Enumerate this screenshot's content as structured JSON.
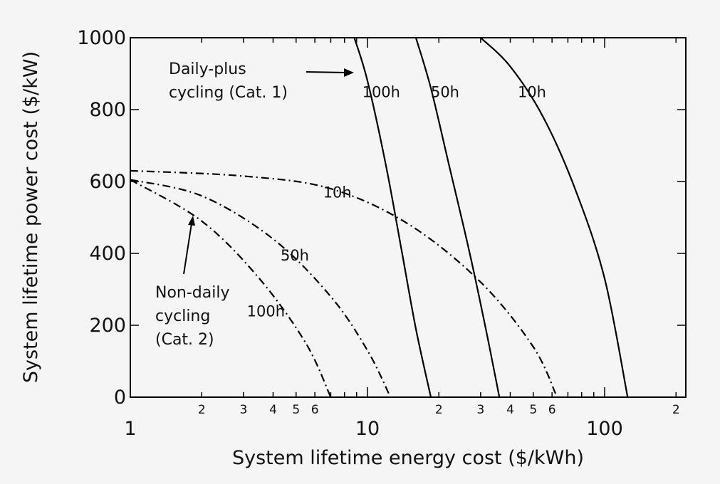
{
  "chart_data": {
    "type": "line",
    "xlabel": "System lifetime energy cost ($/kWh)",
    "ylabel": "System lifetime power cost ($/kW)",
    "xscale": "log",
    "xlim": [
      1,
      200
    ],
    "ylim": [
      0,
      1000
    ],
    "y_ticks": [
      "0",
      "200",
      "400",
      "600",
      "800",
      "1000"
    ],
    "x_major_ticks": [
      {
        "value": 1,
        "label": "1"
      },
      {
        "value": 10,
        "label": "10"
      },
      {
        "value": 100,
        "label": "100"
      }
    ],
    "x_minor_ticks": [
      {
        "value": 2,
        "label": "2"
      },
      {
        "value": 3,
        "label": "3"
      },
      {
        "value": 4,
        "label": "4"
      },
      {
        "value": 5,
        "label": "5"
      },
      {
        "value": 6,
        "label": "6"
      },
      {
        "value": 7,
        "label": ""
      },
      {
        "value": 8,
        "label": ""
      },
      {
        "value": 9,
        "label": ""
      },
      {
        "value": 20,
        "label": "2"
      },
      {
        "value": 30,
        "label": "3"
      },
      {
        "value": 40,
        "label": "4"
      },
      {
        "value": 50,
        "label": "5"
      },
      {
        "value": 60,
        "label": "6"
      },
      {
        "value": 70,
        "label": ""
      },
      {
        "value": 80,
        "label": ""
      },
      {
        "value": 90,
        "label": ""
      },
      {
        "value": 200,
        "label": "2"
      }
    ],
    "series": [
      {
        "label": "100h",
        "group": "Daily-plus cycling (Cat. 1)",
        "style": "solid",
        "x": [
          8.8,
          10,
          12,
          14,
          16,
          18.5
        ],
        "y": [
          1000,
          880,
          640,
          400,
          190,
          0
        ],
        "label_at": {
          "x": 9.5,
          "y": 835
        }
      },
      {
        "label": "50h",
        "group": "Daily-plus cycling (Cat. 1)",
        "style": "solid",
        "x": [
          16,
          18.5,
          22,
          27,
          32,
          36
        ],
        "y": [
          1000,
          860,
          650,
          400,
          170,
          0
        ],
        "label_at": {
          "x": 18.5,
          "y": 835
        }
      },
      {
        "label": "10h",
        "group": "Daily-plus cycling (Cat. 1)",
        "style": "solid",
        "x": [
          30,
          40,
          55,
          75,
          100,
          125
        ],
        "y": [
          1000,
          920,
          780,
          580,
          330,
          0
        ],
        "label_at": {
          "x": 43,
          "y": 835
        }
      },
      {
        "label": "10h",
        "group": "Non-daily cycling (Cat. 2)",
        "style": "dashdot",
        "x": [
          1,
          3,
          7,
          15,
          30,
          50,
          63
        ],
        "y": [
          630,
          615,
          580,
          480,
          320,
          140,
          0
        ],
        "label_at": {
          "x": 6.5,
          "y": 555
        }
      },
      {
        "label": "50h",
        "group": "Non-daily cycling (Cat. 2)",
        "style": "dashdot",
        "x": [
          1,
          2,
          4,
          7,
          10,
          12.5
        ],
        "y": [
          605,
          560,
          440,
          280,
          130,
          0
        ],
        "label_at": {
          "x": 4.3,
          "y": 380
        }
      },
      {
        "label": "100h",
        "group": "Non-daily cycling (Cat. 2)",
        "style": "dashdot",
        "x": [
          1,
          2,
          3.5,
          5.5,
          7
        ],
        "y": [
          605,
          490,
          330,
          150,
          0
        ],
        "label_at": {
          "x": 3.1,
          "y": 225
        }
      }
    ],
    "annotations": [
      {
        "lines": [
          "Daily-plus",
          "cycling (Cat. 1)"
        ]
      },
      {
        "lines": [
          "Non-daily",
          "cycling",
          "(Cat. 2)"
        ]
      }
    ]
  }
}
